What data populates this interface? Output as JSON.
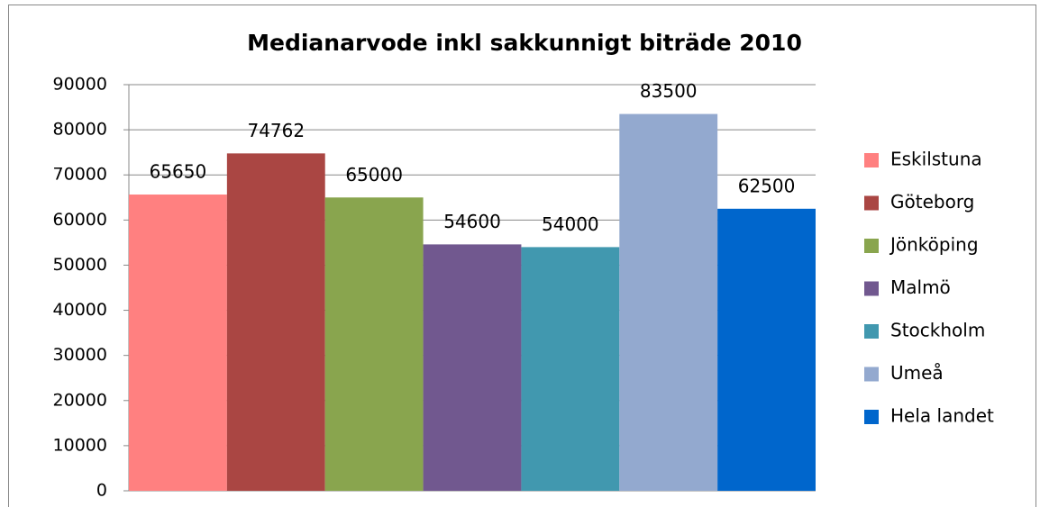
{
  "chart_data": {
    "type": "bar",
    "title": "Medianarvode inkl sakkunnigt biträde 2010",
    "series": [
      {
        "name": "Eskilstuna",
        "color": "#ff8080",
        "values": [
          65650
        ]
      },
      {
        "name": "Göteborg",
        "color": "#aa4643",
        "values": [
          74762
        ]
      },
      {
        "name": "Jönköping",
        "color": "#89a54e",
        "values": [
          65000
        ]
      },
      {
        "name": "Malmö",
        "color": "#71588f",
        "values": [
          54600
        ]
      },
      {
        "name": "Stockholm",
        "color": "#4198af",
        "values": [
          54000
        ]
      },
      {
        "name": "Umeå",
        "color": "#93a9cf",
        "values": [
          83500
        ]
      },
      {
        "name": "Hela landet",
        "color": "#0066cc",
        "values": [
          62500
        ]
      }
    ],
    "ylim": [
      0,
      90000
    ],
    "yticks": [
      0,
      10000,
      20000,
      30000,
      40000,
      50000,
      60000,
      70000,
      80000,
      90000
    ],
    "grid": true,
    "legend": "right"
  }
}
